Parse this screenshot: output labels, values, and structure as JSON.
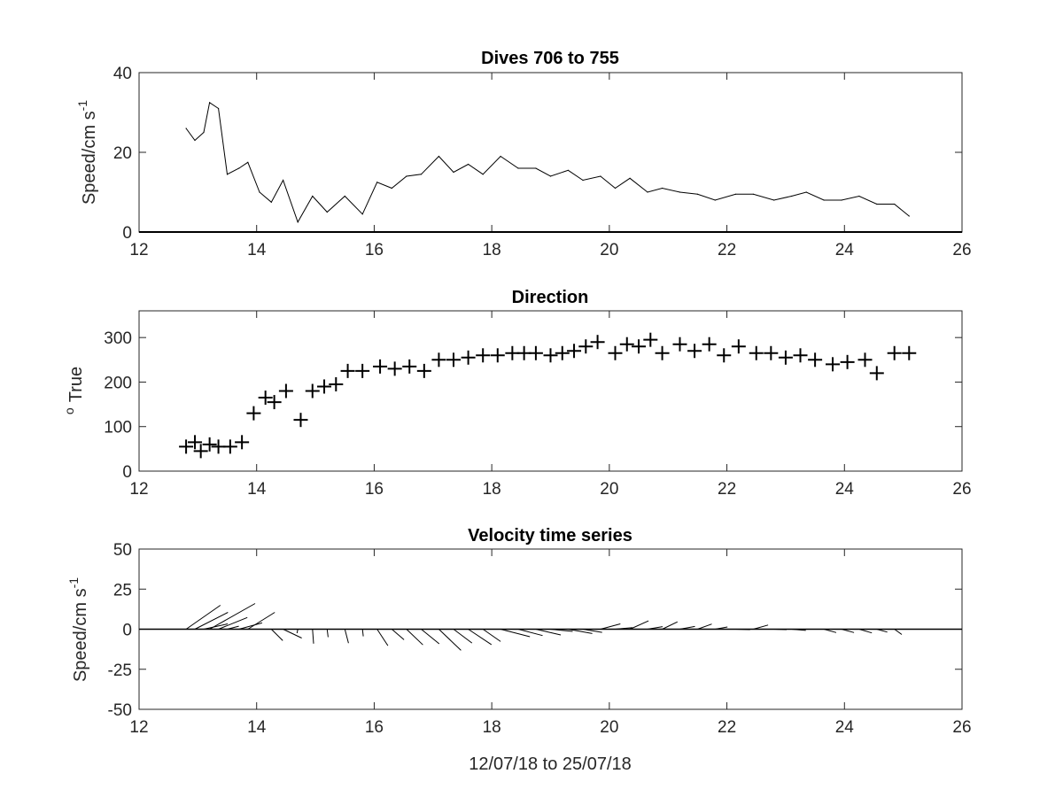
{
  "figure_xlabel": "12/07/18 to 25/07/18",
  "chart_data": [
    {
      "type": "line",
      "title": "Dives 706 to 755",
      "ylabel": "Speed/cm s",
      "ylabel_superscript": "-1",
      "xlim": [
        12,
        26
      ],
      "ylim": [
        0,
        40
      ],
      "xticks": [
        "12",
        "14",
        "16",
        "18",
        "20",
        "22",
        "24",
        "26"
      ],
      "yticks": [
        "0",
        "20",
        "40"
      ],
      "grid": false,
      "x": [
        12.8,
        12.95,
        13.1,
        13.2,
        13.35,
        13.5,
        13.7,
        13.85,
        14.05,
        14.25,
        14.45,
        14.7,
        14.95,
        15.2,
        15.5,
        15.8,
        16.05,
        16.3,
        16.55,
        16.8,
        17.1,
        17.35,
        17.6,
        17.85,
        18.15,
        18.45,
        18.75,
        19.0,
        19.3,
        19.55,
        19.85,
        20.1,
        20.35,
        20.65,
        20.9,
        21.2,
        21.5,
        21.8,
        22.15,
        22.45,
        22.8,
        23.1,
        23.35,
        23.65,
        23.95,
        24.25,
        24.55,
        24.85,
        25.1
      ],
      "values": [
        26,
        23,
        25,
        32.5,
        31,
        14.5,
        16,
        17.5,
        10,
        7.5,
        13,
        2.5,
        9,
        5,
        9,
        4.5,
        12.5,
        11,
        14,
        14.5,
        19,
        15,
        17,
        14.5,
        19,
        16,
        16,
        14,
        15.5,
        13,
        14,
        11,
        13.5,
        10,
        11,
        10,
        9.5,
        8,
        9.5,
        9.5,
        8,
        9,
        10,
        8,
        8,
        9,
        7,
        7,
        4
      ]
    },
    {
      "type": "scatter",
      "title": "Direction",
      "ylabel": "True",
      "ylabel_prefix": "o",
      "xlim": [
        12,
        26
      ],
      "ylim": [
        0,
        360
      ],
      "xticks": [
        "12",
        "14",
        "16",
        "18",
        "20",
        "22",
        "24",
        "26"
      ],
      "yticks": [
        "0",
        "100",
        "200",
        "300"
      ],
      "marker": "plus",
      "grid": false,
      "x": [
        12.8,
        12.95,
        13.05,
        13.2,
        13.35,
        13.55,
        13.75,
        13.95,
        14.15,
        14.3,
        14.5,
        14.75,
        14.95,
        15.15,
        15.35,
        15.55,
        15.8,
        16.1,
        16.35,
        16.6,
        16.85,
        17.1,
        17.35,
        17.6,
        17.85,
        18.1,
        18.35,
        18.55,
        18.75,
        19.0,
        19.2,
        19.4,
        19.6,
        19.8,
        20.1,
        20.3,
        20.5,
        20.7,
        20.9,
        21.2,
        21.45,
        21.7,
        21.95,
        22.2,
        22.5,
        22.75,
        23.0,
        23.25,
        23.5,
        23.8,
        24.05,
        24.35,
        24.55,
        24.85,
        25.1
      ],
      "values": [
        55,
        65,
        45,
        60,
        55,
        55,
        65,
        130,
        165,
        155,
        180,
        115,
        180,
        190,
        195,
        225,
        225,
        235,
        230,
        235,
        225,
        250,
        250,
        255,
        260,
        260,
        265,
        265,
        265,
        260,
        265,
        270,
        280,
        290,
        265,
        285,
        280,
        295,
        265,
        285,
        270,
        285,
        260,
        280,
        265,
        265,
        255,
        260,
        250,
        240,
        245,
        250,
        220,
        265,
        265
      ]
    },
    {
      "type": "quiver",
      "title": "Velocity time series",
      "ylabel": "Speed/cm s",
      "ylabel_superscript": "-1",
      "xlim": [
        12,
        26
      ],
      "ylim": [
        -50,
        50
      ],
      "xticks": [
        "12",
        "14",
        "16",
        "18",
        "20",
        "22",
        "24",
        "26"
      ],
      "yticks": [
        "-50",
        "-25",
        "0",
        "25",
        "50"
      ],
      "grid": false,
      "x": [
        12.8,
        12.95,
        13.1,
        13.2,
        13.35,
        13.5,
        13.7,
        13.85,
        14.05,
        14.25,
        14.45,
        14.7,
        14.95,
        15.2,
        15.5,
        15.8,
        16.05,
        16.3,
        16.55,
        16.8,
        17.1,
        17.35,
        17.6,
        17.85,
        18.15,
        18.45,
        18.75,
        19.0,
        19.3,
        19.55,
        19.85,
        20.1,
        20.35,
        20.65,
        20.9,
        21.2,
        21.5,
        21.8,
        22.15,
        22.45,
        22.8,
        23.1,
        23.35,
        23.65,
        23.95,
        24.25,
        24.55,
        24.85
      ],
      "u": [
        21.4,
        20.6,
        15.0,
        28.4,
        18.0,
        7.2,
        14.4,
        16.8,
        9.0,
        7.1,
        11.6,
        -0.5,
        0.7,
        0.6,
        2.3,
        0.5,
        6.7,
        7.6,
        10.2,
        11.2,
        13.8,
        11.5,
        14.5,
        11.0,
        18.3,
        15.2,
        15.5,
        13.8,
        15.0,
        12.0,
        12.4,
        10.8,
        11.6,
        9.4,
        9.5,
        9.4,
        8.9,
        7.7,
        9.0,
        9.2,
        7.9,
        8.9,
        9.5,
        7.7,
        7.8,
        7.9,
        6.6,
        4.6
      ],
      "v": [
        14.9,
        10.5,
        3.3,
        16.0,
        7.3,
        1.9,
        3.9,
        10.5,
        0.0,
        -7.1,
        -5.5,
        -2.5,
        -9.0,
        -5.0,
        -8.7,
        -4.5,
        -10.3,
        -6.6,
        -9.8,
        -9.1,
        -13.2,
        -8.6,
        -9.6,
        -7.7,
        -4.7,
        -4.0,
        -3.6,
        -1.4,
        -2.7,
        -2.0,
        3.3,
        1.0,
        5.2,
        1.6,
        4.6,
        1.7,
        3.2,
        1.4,
        -0.3,
        2.6,
        -0.3,
        -0.8,
        0.0,
        -2.1,
        -2.1,
        -2.3,
        -1.8,
        -3.3
      ]
    }
  ]
}
